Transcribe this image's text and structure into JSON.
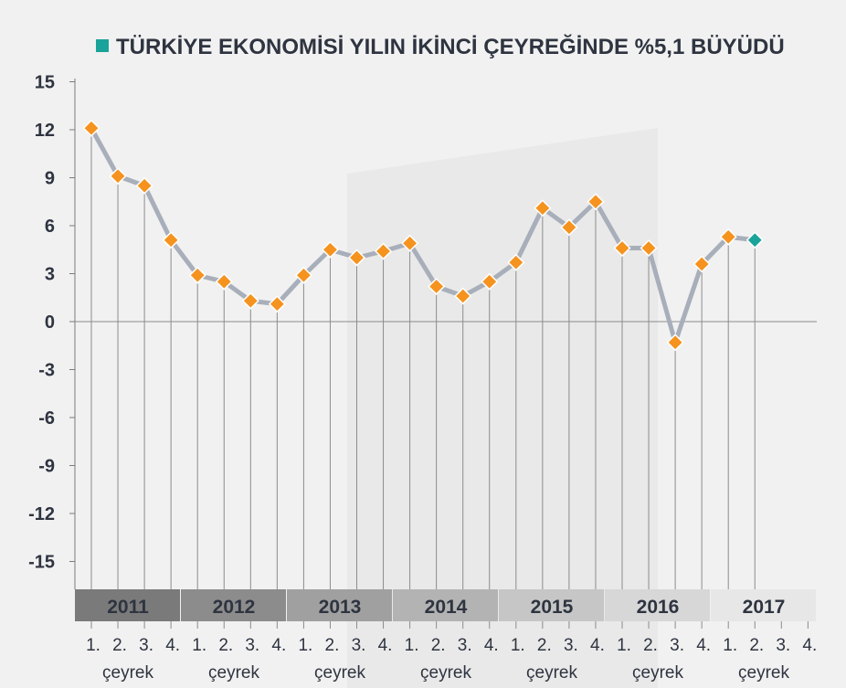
{
  "chart_data": {
    "type": "line",
    "title": "TÜRKİYE EKONOMİSİ YILIN İKİNCİ ÇEYREĞİNDE %5,1 BÜYÜDÜ",
    "ylim": [
      -15,
      15
    ],
    "yticks": [
      15,
      12,
      9,
      6,
      3,
      0,
      -3,
      -6,
      -9,
      -12,
      -15
    ],
    "years": [
      "2011",
      "2012",
      "2013",
      "2014",
      "2015",
      "2016",
      "2017"
    ],
    "quarter_labels": [
      "1.",
      "2.",
      "3.",
      "4."
    ],
    "quarter_caption": "çeyrek",
    "values": [
      12.1,
      9.1,
      8.5,
      5.1,
      2.9,
      2.5,
      1.3,
      1.1,
      2.9,
      4.5,
      4.0,
      4.4,
      4.9,
      2.2,
      1.6,
      2.5,
      3.7,
      7.1,
      5.9,
      7.5,
      4.6,
      4.6,
      -1.3,
      3.6,
      5.3,
      5.1
    ],
    "grid": false,
    "colors": {
      "marker": "#f5931e",
      "highlight_marker": "#1aa39a",
      "line": "#a8afba",
      "title_square": "#1aa39a",
      "text": "#2e3440",
      "year_bands": [
        "#7a7a7a",
        "#8c8c8c",
        "#a0a0a0",
        "#b3b3b3",
        "#c6c6c6",
        "#d7d7d7",
        "#e7e7e7"
      ]
    }
  }
}
